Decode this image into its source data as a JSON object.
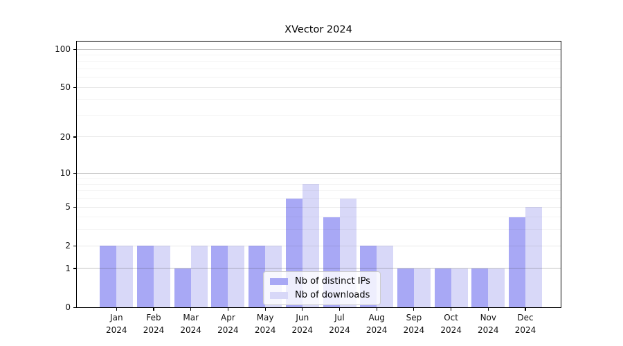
{
  "chart_data": {
    "type": "bar",
    "title": "XVector 2024",
    "categories": [
      "Jan",
      "Feb",
      "Mar",
      "Apr",
      "May",
      "Jun",
      "Jul",
      "Aug",
      "Sep",
      "Oct",
      "Nov",
      "Dec"
    ],
    "year_label": "2024",
    "series": [
      {
        "name": "Nb of distinct IPs",
        "color": "#a8a8f5",
        "values": [
          2,
          2,
          1,
          2,
          2,
          6,
          4,
          2,
          1,
          1,
          1,
          4
        ]
      },
      {
        "name": "Nb of downloads",
        "color": "#d8d8f8",
        "values": [
          2,
          2,
          2,
          2,
          2,
          8,
          6,
          2,
          1,
          1,
          1,
          5
        ]
      }
    ],
    "y_axis": {
      "scale": "log1p",
      "tick_labels": [
        0,
        1,
        2,
        5,
        10,
        20,
        50,
        100
      ],
      "gridlines_major": [
        1,
        10,
        100
      ],
      "gridlines_mid": [
        2,
        5,
        20,
        50
      ],
      "gridlines_minor": [
        3,
        4,
        6,
        7,
        8,
        9,
        30,
        40,
        60,
        70,
        80,
        90
      ],
      "max_tick_value": 100
    },
    "legend": {
      "position": "inside-bottom-center",
      "entries": [
        "Nb of distinct IPs",
        "Nb of downloads"
      ]
    },
    "grid": true,
    "colors": {
      "spine": "#000000",
      "tick_label": "#111111"
    }
  }
}
